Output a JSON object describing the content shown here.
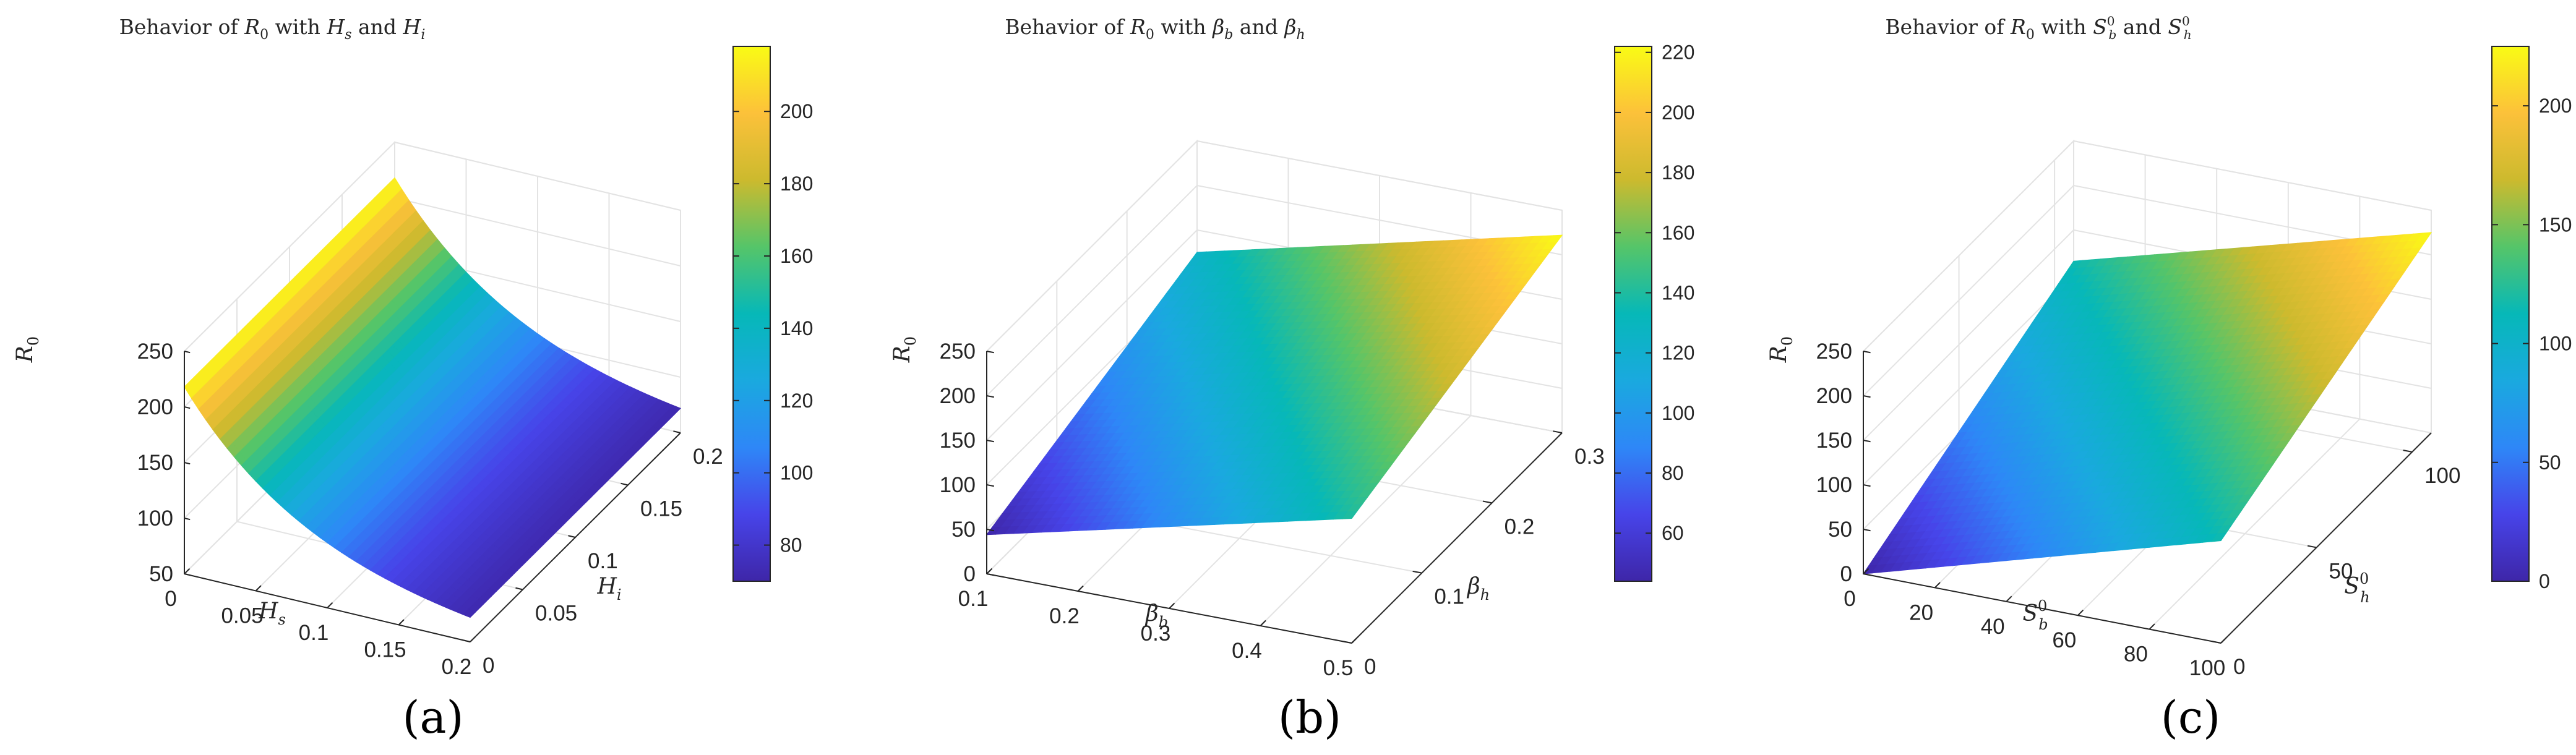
{
  "chart_data": [
    {
      "type": "surface",
      "panel": "(a)",
      "title": "Behavior of R0 with Hs and Hi",
      "title_parts": [
        "Behavior of ",
        "R",
        "0",
        " with ",
        "H",
        "s",
        " and ",
        "H",
        "i"
      ],
      "xlabel_parts": [
        "H",
        "s"
      ],
      "ylabel_parts": [
        "H",
        "i"
      ],
      "zlabel_parts": [
        "R",
        "0"
      ],
      "x_range": [
        0,
        0.2
      ],
      "y_range": [
        0,
        0.2
      ],
      "z_range": [
        50,
        250
      ],
      "x_ticks": [
        "0",
        "0.05",
        "0.1",
        "0.15",
        "0.2"
      ],
      "y_ticks": [
        "0",
        "0.05",
        "0.1",
        "0.15",
        "0.2"
      ],
      "z_ticks": [
        "50",
        "100",
        "150",
        "200",
        "250"
      ],
      "colorbar_range": [
        70,
        218
      ],
      "colorbar_ticks": [
        "80",
        "100",
        "120",
        "140",
        "160",
        "180",
        "200"
      ],
      "corners": {
        "x0y0": 218,
        "x1y0": 72,
        "x1y1": 72,
        "x0y1": 218
      },
      "curvature": "convex decay along Hs",
      "grid": true
    },
    {
      "type": "surface",
      "panel": "(b)",
      "title": "Behavior of R0 with βb and βh",
      "title_parts": [
        "Behavior of ",
        "R",
        "0",
        " with ",
        "β",
        "b",
        " and ",
        "β",
        "h"
      ],
      "xlabel_parts": [
        "β",
        "b"
      ],
      "ylabel_parts": [
        "β",
        "h"
      ],
      "zlabel_parts": [
        "R",
        "0"
      ],
      "x_range": [
        0.1,
        0.5
      ],
      "y_range": [
        0,
        0.3
      ],
      "z_range": [
        0,
        250
      ],
      "x_ticks": [
        "0.1",
        "0.2",
        "0.3",
        "0.4",
        "0.5"
      ],
      "y_ticks": [
        "0",
        "0.1",
        "0.2",
        "0.3"
      ],
      "z_ticks": [
        "0",
        "50",
        "100",
        "150",
        "200",
        "250"
      ],
      "colorbar_range": [
        44,
        222
      ],
      "colorbar_ticks": [
        "60",
        "80",
        "100",
        "120",
        "140",
        "160",
        "180",
        "200",
        "220"
      ],
      "corners": {
        "x0y0": 44,
        "x1y0": 140,
        "x1y1": 222,
        "x0y1": 125
      },
      "grid": true
    },
    {
      "type": "surface",
      "panel": "(c)",
      "title": "Behavior of R0 with Sb0 and Sh0",
      "title_parts": [
        "Behavior of ",
        "R",
        "0",
        " with ",
        "S",
        "0",
        "b",
        " and ",
        "S",
        "0",
        "h"
      ],
      "xlabel_parts": [
        "S",
        "0",
        "b"
      ],
      "ylabel_parts": [
        "S",
        "0",
        "h"
      ],
      "zlabel_parts": [
        "R",
        "0"
      ],
      "x_range": [
        0,
        100
      ],
      "y_range": [
        0,
        110
      ],
      "z_range": [
        0,
        250
      ],
      "x_ticks": [
        "0",
        "20",
        "40",
        "60",
        "80",
        "100"
      ],
      "y_ticks": [
        "0",
        "50",
        "100"
      ],
      "z_ticks": [
        "0",
        "50",
        "100",
        "150",
        "200",
        "250"
      ],
      "colorbar_range": [
        0,
        225
      ],
      "colorbar_ticks": [
        "0",
        "50",
        "100",
        "150",
        "200"
      ],
      "corners": {
        "x0y0": 0,
        "x1y0": 115,
        "x1y1": 225,
        "x0y1": 115
      },
      "grid": true
    }
  ]
}
